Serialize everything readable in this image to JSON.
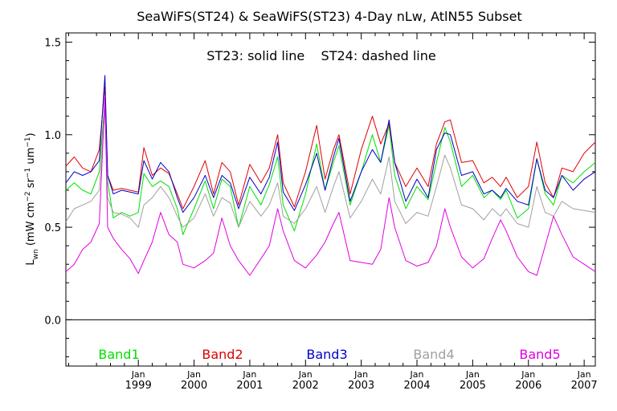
{
  "chart_data": {
    "type": "line",
    "title": "SeaWiFS(ST24) & SeaWiFS(ST23) 4-Day nLw, AtlN55 Subset",
    "annotation": "ST23: solid line    ST24: dashed line",
    "ylabel": "L_wn (mW cm^-2 sr^-1 um^-1)",
    "ylabel_parts": {
      "main": "L",
      "sub": "wn",
      "units_open": " (mW cm",
      "exp1": "−2",
      "mid1": " sr",
      "exp2": "−1",
      "mid2": " um",
      "exp3": "−1",
      "units_close": ")"
    },
    "xlabel": "",
    "ylim": [
      -0.25,
      1.55
    ],
    "xlim": [
      1997.7,
      2007.2
    ],
    "y_ticks": [
      0.0,
      0.5,
      1.0,
      1.5
    ],
    "y_tick_labels": [
      "0.0",
      "0.5",
      "1.0",
      "1.5"
    ],
    "x_ticks": [
      1999.0,
      2000.0,
      2001.0,
      2002.0,
      2003.0,
      2004.0,
      2005.0,
      2006.0,
      2007.0
    ],
    "x_tick_month_labels": [
      "Jan",
      "Jan",
      "Jan",
      "Jan",
      "Jan",
      "Jan",
      "Jan",
      "Jan",
      "Jan"
    ],
    "x_tick_year_labels": [
      "1999",
      "2000",
      "2001",
      "2002",
      "2003",
      "2004",
      "2005",
      "2006",
      "2007"
    ],
    "reference_line_y": 0.0,
    "grid": false,
    "legend_position": "bottom",
    "series": [
      {
        "name": "Band1",
        "color": "#00e000",
        "x": [
          1997.7,
          1997.85,
          1998.0,
          1998.15,
          1998.3,
          1998.4,
          1998.45,
          1998.55,
          1998.7,
          1998.85,
          1999.0,
          1999.1,
          1999.25,
          1999.4,
          1999.55,
          1999.7,
          1999.8,
          2000.0,
          2000.2,
          2000.35,
          2000.5,
          2000.65,
          2000.8,
          2001.0,
          2001.2,
          2001.35,
          2001.5,
          2001.6,
          2001.8,
          2002.0,
          2002.2,
          2002.35,
          2002.5,
          2002.6,
          2002.8,
          2003.0,
          2003.2,
          2003.35,
          2003.5,
          2003.6,
          2003.8,
          2004.0,
          2004.2,
          2004.35,
          2004.5,
          2004.6,
          2004.8,
          2005.0,
          2005.2,
          2005.35,
          2005.5,
          2005.6,
          2005.8,
          2006.0,
          2006.15,
          2006.3,
          2006.45,
          2006.6,
          2006.8,
          2007.0,
          2007.2
        ],
        "values": [
          0.7,
          0.74,
          0.7,
          0.68,
          0.8,
          1.18,
          0.75,
          0.55,
          0.58,
          0.56,
          0.58,
          0.79,
          0.72,
          0.75,
          0.72,
          0.6,
          0.46,
          0.6,
          0.75,
          0.6,
          0.76,
          0.72,
          0.5,
          0.72,
          0.62,
          0.73,
          0.88,
          0.62,
          0.48,
          0.68,
          0.95,
          0.7,
          0.85,
          0.94,
          0.62,
          0.8,
          1.0,
          0.85,
          1.05,
          0.78,
          0.6,
          0.72,
          0.65,
          0.85,
          1.04,
          0.96,
          0.72,
          0.78,
          0.66,
          0.7,
          0.65,
          0.7,
          0.55,
          0.6,
          0.87,
          0.68,
          0.62,
          0.78,
          0.74,
          0.8,
          0.85
        ]
      },
      {
        "name": "Band2",
        "color": "#e00000",
        "x": [
          1997.7,
          1997.85,
          1998.0,
          1998.15,
          1998.3,
          1998.4,
          1998.45,
          1998.55,
          1998.7,
          1998.85,
          1999.0,
          1999.1,
          1999.25,
          1999.4,
          1999.55,
          1999.7,
          1999.8,
          2000.0,
          2000.2,
          2000.35,
          2000.5,
          2000.65,
          2000.8,
          2001.0,
          2001.2,
          2001.35,
          2001.5,
          2001.6,
          2001.8,
          2002.0,
          2002.2,
          2002.35,
          2002.5,
          2002.6,
          2002.8,
          2003.0,
          2003.2,
          2003.35,
          2003.5,
          2003.6,
          2003.8,
          2004.0,
          2004.2,
          2004.35,
          2004.5,
          2004.6,
          2004.8,
          2005.0,
          2005.2,
          2005.35,
          2005.5,
          2005.6,
          2005.8,
          2006.0,
          2006.15,
          2006.3,
          2006.45,
          2006.6,
          2006.8,
          2007.0,
          2007.2
        ],
        "values": [
          0.83,
          0.88,
          0.82,
          0.8,
          0.92,
          1.26,
          0.78,
          0.7,
          0.71,
          0.7,
          0.69,
          0.93,
          0.78,
          0.82,
          0.79,
          0.68,
          0.6,
          0.72,
          0.86,
          0.68,
          0.85,
          0.8,
          0.62,
          0.84,
          0.74,
          0.82,
          1.0,
          0.74,
          0.61,
          0.8,
          1.05,
          0.76,
          0.92,
          1.0,
          0.68,
          0.92,
          1.1,
          0.95,
          1.06,
          0.85,
          0.72,
          0.82,
          0.72,
          0.95,
          1.07,
          1.08,
          0.85,
          0.86,
          0.74,
          0.77,
          0.72,
          0.77,
          0.66,
          0.72,
          0.96,
          0.74,
          0.66,
          0.82,
          0.8,
          0.9,
          0.96
        ]
      },
      {
        "name": "Band3",
        "color": "#0000cc",
        "x": [
          1997.7,
          1997.85,
          1998.0,
          1998.15,
          1998.3,
          1998.4,
          1998.45,
          1998.55,
          1998.7,
          1998.85,
          1999.0,
          1999.1,
          1999.25,
          1999.4,
          1999.55,
          1999.7,
          1999.8,
          2000.0,
          2000.2,
          2000.35,
          2000.5,
          2000.65,
          2000.8,
          2001.0,
          2001.2,
          2001.35,
          2001.5,
          2001.6,
          2001.8,
          2002.0,
          2002.2,
          2002.35,
          2002.5,
          2002.6,
          2002.8,
          2003.0,
          2003.2,
          2003.35,
          2003.5,
          2003.6,
          2003.8,
          2004.0,
          2004.2,
          2004.35,
          2004.5,
          2004.6,
          2004.8,
          2005.0,
          2005.2,
          2005.35,
          2005.5,
          2005.6,
          2005.8,
          2006.0,
          2006.15,
          2006.3,
          2006.45,
          2006.6,
          2006.8,
          2007.0,
          2007.2
        ],
        "values": [
          0.74,
          0.8,
          0.78,
          0.8,
          0.86,
          1.32,
          0.78,
          0.68,
          0.7,
          0.69,
          0.68,
          0.86,
          0.76,
          0.85,
          0.8,
          0.66,
          0.58,
          0.66,
          0.78,
          0.66,
          0.78,
          0.74,
          0.6,
          0.77,
          0.68,
          0.77,
          0.96,
          0.69,
          0.59,
          0.73,
          0.9,
          0.7,
          0.88,
          0.98,
          0.64,
          0.8,
          0.92,
          0.85,
          1.08,
          0.85,
          0.64,
          0.76,
          0.66,
          0.92,
          1.01,
          1.0,
          0.78,
          0.8,
          0.68,
          0.7,
          0.66,
          0.71,
          0.64,
          0.62,
          0.87,
          0.7,
          0.66,
          0.78,
          0.7,
          0.76,
          0.8
        ]
      },
      {
        "name": "Band4",
        "color": "#a0a0a0",
        "x": [
          1997.7,
          1997.85,
          1998.0,
          1998.15,
          1998.3,
          1998.4,
          1998.45,
          1998.55,
          1998.7,
          1998.85,
          1999.0,
          1999.1,
          1999.25,
          1999.4,
          1999.55,
          1999.7,
          1999.8,
          2000.0,
          2000.2,
          2000.35,
          2000.5,
          2000.65,
          2000.8,
          2001.0,
          2001.2,
          2001.35,
          2001.5,
          2001.6,
          2001.8,
          2002.0,
          2002.2,
          2002.35,
          2002.5,
          2002.6,
          2002.8,
          2003.0,
          2003.2,
          2003.35,
          2003.5,
          2003.6,
          2003.8,
          2004.0,
          2004.2,
          2004.35,
          2004.5,
          2004.6,
          2004.8,
          2005.0,
          2005.2,
          2005.35,
          2005.5,
          2005.6,
          2005.8,
          2006.0,
          2006.15,
          2006.3,
          2006.45,
          2006.6,
          2006.8,
          2007.0,
          2007.2
        ],
        "values": [
          0.53,
          0.6,
          0.62,
          0.64,
          0.7,
          1.14,
          0.66,
          0.58,
          0.57,
          0.55,
          0.5,
          0.62,
          0.66,
          0.72,
          0.66,
          0.56,
          0.5,
          0.55,
          0.68,
          0.56,
          0.66,
          0.63,
          0.5,
          0.64,
          0.56,
          0.62,
          0.74,
          0.56,
          0.52,
          0.6,
          0.72,
          0.58,
          0.72,
          0.8,
          0.55,
          0.64,
          0.76,
          0.68,
          0.88,
          0.64,
          0.52,
          0.58,
          0.56,
          0.72,
          0.89,
          0.82,
          0.62,
          0.6,
          0.54,
          0.6,
          0.56,
          0.6,
          0.52,
          0.5,
          0.72,
          0.58,
          0.56,
          0.64,
          0.6,
          0.59,
          0.58
        ]
      },
      {
        "name": "Band5",
        "color": "#e000e0",
        "x": [
          1997.7,
          1997.85,
          1998.0,
          1998.15,
          1998.3,
          1998.4,
          1998.45,
          1998.55,
          1998.7,
          1998.85,
          1999.0,
          1999.1,
          1999.25,
          1999.4,
          1999.55,
          1999.7,
          1999.8,
          2000.0,
          2000.2,
          2000.35,
          2000.5,
          2000.65,
          2000.8,
          2001.0,
          2001.2,
          2001.35,
          2001.5,
          2001.6,
          2001.8,
          2002.0,
          2002.2,
          2002.35,
          2002.5,
          2002.6,
          2002.8,
          2003.0,
          2003.2,
          2003.35,
          2003.5,
          2003.6,
          2003.8,
          2004.0,
          2004.2,
          2004.35,
          2004.5,
          2004.6,
          2004.8,
          2005.0,
          2005.2,
          2005.35,
          2005.5,
          2005.6,
          2005.8,
          2006.0,
          2006.15,
          2006.3,
          2006.45,
          2006.6,
          2006.8,
          2007.0,
          2007.2
        ],
        "values": [
          0.26,
          0.3,
          0.38,
          0.42,
          0.52,
          1.2,
          0.5,
          0.44,
          0.38,
          0.33,
          0.25,
          0.32,
          0.42,
          0.58,
          0.46,
          0.42,
          0.3,
          0.28,
          0.32,
          0.36,
          0.55,
          0.4,
          0.32,
          0.24,
          0.33,
          0.4,
          0.6,
          0.48,
          0.32,
          0.28,
          0.35,
          0.42,
          0.52,
          0.58,
          0.32,
          0.31,
          0.3,
          0.38,
          0.66,
          0.5,
          0.32,
          0.29,
          0.31,
          0.4,
          0.6,
          0.5,
          0.34,
          0.28,
          0.33,
          0.44,
          0.54,
          0.48,
          0.34,
          0.26,
          0.24,
          0.4,
          0.56,
          0.46,
          0.34,
          0.3,
          0.26
        ]
      }
    ]
  }
}
